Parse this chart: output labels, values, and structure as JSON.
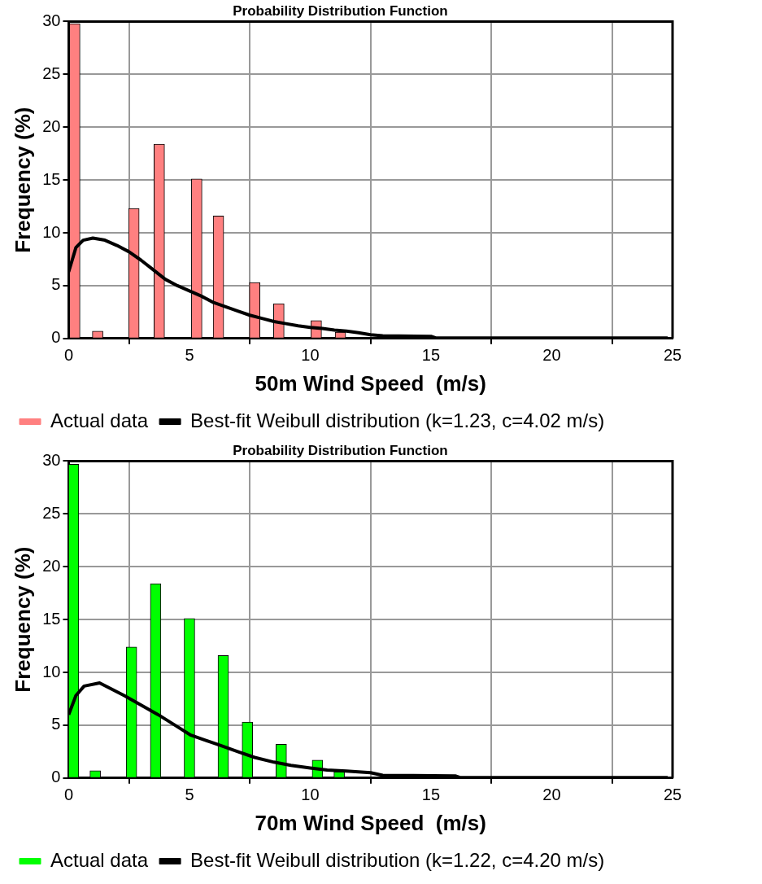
{
  "chart_data": [
    {
      "type": "bar",
      "title": "Probability Distribution Function",
      "xlabel": "50m Wind Speed  (m/s)",
      "ylabel": "Frequency (%)",
      "xlim": [
        0,
        25
      ],
      "xticks": [
        0,
        5,
        10,
        15,
        20,
        25
      ],
      "ylim": [
        0,
        30
      ],
      "yticks": [
        0,
        5,
        10,
        15,
        20,
        25,
        30
      ],
      "grid": true,
      "legend": "bottom",
      "series": [
        {
          "name": "Actual data",
          "color": "#ff8080",
          "x": [
            0.25,
            1.2,
            2.7,
            3.75,
            5.3,
            6.2,
            7.7,
            8.7,
            10.25,
            11.25
          ],
          "values": [
            29.8,
            0.7,
            12.3,
            18.4,
            15.1,
            11.6,
            5.3,
            3.3,
            1.7,
            0.6
          ]
        },
        {
          "type": "line",
          "name": "Best-fit Weibull distribution (k=1.23, c=4.02 m/s)",
          "color": "#000000",
          "x": [
            0,
            0.3,
            0.6,
            1.0,
            1.5,
            2,
            2.5,
            3,
            3.5,
            4,
            4.5,
            5,
            5.5,
            6,
            6.5,
            7,
            7.5,
            8,
            8.5,
            9,
            9.5,
            10,
            10.5,
            11,
            11.5,
            12,
            12.5,
            13,
            15,
            15.2,
            24.8
          ],
          "values": [
            6.3,
            8.6,
            9.3,
            9.5,
            9.3,
            8.8,
            8.2,
            7.4,
            6.5,
            5.6,
            5.0,
            4.5,
            4.0,
            3.4,
            3.0,
            2.6,
            2.2,
            1.9,
            1.6,
            1.4,
            1.2,
            1.05,
            0.95,
            0.8,
            0.7,
            0.55,
            0.35,
            0.25,
            0.2,
            0.05,
            0.05
          ]
        }
      ]
    },
    {
      "type": "bar",
      "title": "Probability Distribution Function",
      "xlabel": "70m Wind Speed  (m/s)",
      "ylabel": "Frequency (%)",
      "xlim": [
        0,
        25
      ],
      "xticks": [
        0,
        5,
        10,
        15,
        20,
        25
      ],
      "ylim": [
        0,
        30
      ],
      "yticks": [
        0,
        5,
        10,
        15,
        20,
        25,
        30
      ],
      "grid": true,
      "legend": "bottom",
      "series": [
        {
          "name": "Actual data",
          "color": "#00ff00",
          "x": [
            0.2,
            1.1,
            2.6,
            3.6,
            5.0,
            6.4,
            7.4,
            8.8,
            10.3,
            11.2
          ],
          "values": [
            29.7,
            0.7,
            12.4,
            18.4,
            15.1,
            11.6,
            5.3,
            3.2,
            1.7,
            0.6
          ]
        },
        {
          "type": "line",
          "name": "Best-fit Weibull distribution (k=1.22, c=4.20 m/s)",
          "color": "#000000",
          "x": [
            0,
            0.3,
            0.64,
            1.28,
            2.3,
            3.0,
            3.7,
            4.4,
            5.06,
            6.2,
            7.0,
            7.7,
            8.5,
            9.2,
            10.0,
            10.7,
            11.5,
            12.5,
            13,
            16,
            16.2,
            24.8
          ],
          "values": [
            6.0,
            7.8,
            8.7,
            9.0,
            7.8,
            6.9,
            6.0,
            5.0,
            4.05,
            3.15,
            2.5,
            1.95,
            1.5,
            1.2,
            0.95,
            0.75,
            0.65,
            0.5,
            0.25,
            0.2,
            0.05,
            0.05
          ]
        }
      ]
    }
  ]
}
